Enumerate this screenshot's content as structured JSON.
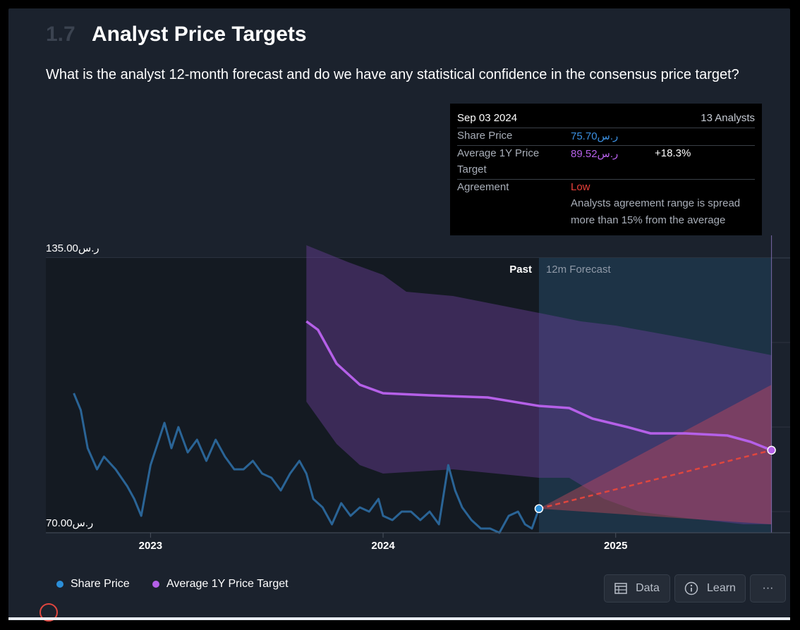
{
  "section": {
    "number": "1.7",
    "title": "Analyst Price Targets"
  },
  "question": "What is the analyst 12-month forecast and do we have any statistical confidence in the consensus price target?",
  "tooltip": {
    "date": "Sep 03 2024",
    "analysts": "13 Analysts",
    "share_price_label": "Share Price",
    "share_price_value": "ر.س75.70",
    "avg_target_label": "Average 1Y Price Target",
    "avg_target_label_line1": "Average 1Y Price",
    "avg_target_label_line2": "Target",
    "avg_target_value": "ر.س89.52",
    "avg_target_change": "+18.3%",
    "agreement_label": "Agreement",
    "agreement_value": "Low",
    "agreement_desc_line1": "Analysts agreement range is spread",
    "agreement_desc_line2": "more than 15% from the average"
  },
  "legend": {
    "share_price": "Share Price",
    "avg_target": "Average 1Y Price Target"
  },
  "buttons": {
    "data": "Data",
    "learn": "Learn",
    "more": "···"
  },
  "colors": {
    "share_price": "#2a6496",
    "avg_target": "#b560e8",
    "forecast_line": "#e0463e",
    "agreement_low": "#e8403a"
  },
  "chart_data": {
    "type": "line",
    "title": "Analyst Price Targets",
    "y_axis_labels": [
      "ر.س135.00",
      "ر.س70.00"
    ],
    "ylim": [
      70,
      135
    ],
    "x_ticks": [
      "2023",
      "2024",
      "2025"
    ],
    "x_tick_years": [
      2023,
      2024,
      2025
    ],
    "x_range": [
      2022.55,
      2025.75
    ],
    "past_label": "Past",
    "forecast_label": "12m Forecast",
    "forecast_start": 2024.67,
    "series": [
      {
        "name": "Share Price",
        "points": [
          [
            2022.67,
            103
          ],
          [
            2022.7,
            99
          ],
          [
            2022.73,
            90
          ],
          [
            2022.77,
            85
          ],
          [
            2022.8,
            88
          ],
          [
            2022.85,
            85
          ],
          [
            2022.9,
            81
          ],
          [
            2022.93,
            78
          ],
          [
            2022.96,
            74
          ],
          [
            2022.98,
            80
          ],
          [
            2023.0,
            86
          ],
          [
            2023.03,
            91
          ],
          [
            2023.06,
            96
          ],
          [
            2023.09,
            90
          ],
          [
            2023.12,
            95
          ],
          [
            2023.16,
            89
          ],
          [
            2023.2,
            92
          ],
          [
            2023.24,
            87
          ],
          [
            2023.28,
            92
          ],
          [
            2023.32,
            88
          ],
          [
            2023.36,
            85
          ],
          [
            2023.4,
            85
          ],
          [
            2023.44,
            87
          ],
          [
            2023.48,
            84
          ],
          [
            2023.52,
            83
          ],
          [
            2023.56,
            80
          ],
          [
            2023.6,
            84
          ],
          [
            2023.64,
            87
          ],
          [
            2023.67,
            84
          ],
          [
            2023.7,
            78
          ],
          [
            2023.74,
            76
          ],
          [
            2023.78,
            72
          ],
          [
            2023.82,
            77
          ],
          [
            2023.86,
            74
          ],
          [
            2023.9,
            76
          ],
          [
            2023.94,
            75
          ],
          [
            2023.98,
            78
          ],
          [
            2024.0,
            74
          ],
          [
            2024.04,
            73
          ],
          [
            2024.08,
            75
          ],
          [
            2024.12,
            75
          ],
          [
            2024.16,
            73
          ],
          [
            2024.2,
            75
          ],
          [
            2024.24,
            72
          ],
          [
            2024.28,
            86
          ],
          [
            2024.31,
            80
          ],
          [
            2024.34,
            76
          ],
          [
            2024.38,
            73
          ],
          [
            2024.42,
            71
          ],
          [
            2024.46,
            71
          ],
          [
            2024.5,
            70
          ],
          [
            2024.54,
            74
          ],
          [
            2024.58,
            75
          ],
          [
            2024.61,
            72
          ],
          [
            2024.64,
            71
          ],
          [
            2024.67,
            75.7
          ]
        ]
      },
      {
        "name": "Average 1Y Price Target",
        "points": [
          [
            2023.67,
            120
          ],
          [
            2023.72,
            118
          ],
          [
            2023.8,
            110
          ],
          [
            2023.9,
            105
          ],
          [
            2024.0,
            103
          ],
          [
            2024.2,
            102.5
          ],
          [
            2024.45,
            102
          ],
          [
            2024.67,
            100
          ],
          [
            2024.8,
            99.5
          ],
          [
            2024.9,
            97
          ],
          [
            2025.05,
            95
          ],
          [
            2025.15,
            93.5
          ],
          [
            2025.3,
            93.5
          ],
          [
            2025.48,
            93
          ],
          [
            2025.58,
            91.5
          ],
          [
            2025.67,
            89.52
          ]
        ]
      }
    ],
    "target_band": {
      "high": [
        [
          2023.67,
          138
        ],
        [
          2023.85,
          134
        ],
        [
          2024.0,
          131
        ],
        [
          2024.1,
          127
        ],
        [
          2024.3,
          126
        ],
        [
          2024.67,
          122
        ],
        [
          2024.85,
          120
        ],
        [
          2025.0,
          119
        ],
        [
          2025.3,
          116
        ],
        [
          2025.67,
          112
        ]
      ],
      "low": [
        [
          2023.67,
          101
        ],
        [
          2023.8,
          91
        ],
        [
          2023.9,
          86
        ],
        [
          2024.0,
          84
        ],
        [
          2024.3,
          85
        ],
        [
          2024.67,
          83
        ],
        [
          2024.8,
          83
        ],
        [
          2024.95,
          78
        ],
        [
          2025.1,
          75
        ],
        [
          2025.3,
          73.5
        ],
        [
          2025.55,
          72
        ],
        [
          2025.67,
          72
        ]
      ]
    },
    "forecast": {
      "start": [
        2024.67,
        75.7
      ],
      "end": [
        2025.67,
        89.52
      ],
      "cone_high": 105,
      "cone_low": 72
    }
  }
}
